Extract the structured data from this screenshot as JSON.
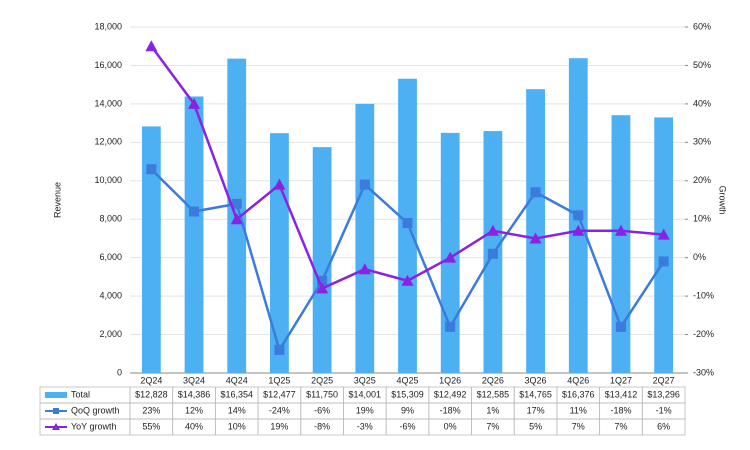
{
  "chart_data": {
    "type": "combo",
    "y_label": "Revenue",
    "y2_label": "Growth",
    "categories": [
      "2Q24",
      "3Q24",
      "4Q24",
      "1Q25",
      "2Q25",
      "3Q25",
      "4Q25",
      "1Q26",
      "2Q26",
      "3Q26",
      "4Q26",
      "1Q27",
      "2Q27"
    ],
    "series": [
      {
        "name": "Total",
        "type": "bar",
        "color": "#4cb0f2",
        "values": [
          12828,
          14386,
          16354,
          12477,
          11750,
          14001,
          15309,
          12492,
          12585,
          14765,
          16376,
          13412,
          13296
        ],
        "value_labels": [
          "$12,828",
          "$14,386",
          "$16,354",
          "$12,477",
          "$11,750",
          "$14,001",
          "$15,309",
          "$12,492",
          "$12,585",
          "$14,765",
          "$16,376",
          "$13,412",
          "$13,296"
        ]
      },
      {
        "name": "QoQ growth",
        "type": "line",
        "marker": "square",
        "axis": "y2",
        "color": "#3b7bdc",
        "values": [
          23,
          12,
          14,
          -24,
          -6,
          19,
          9,
          -18,
          1,
          17,
          11,
          -18,
          -1
        ],
        "value_labels": [
          "23%",
          "12%",
          "14%",
          "-24%",
          "-6%",
          "19%",
          "9%",
          "-18%",
          "1%",
          "17%",
          "11%",
          "-18%",
          "-1%"
        ]
      },
      {
        "name": "YoY growth",
        "type": "line",
        "marker": "triangle",
        "axis": "y2",
        "color": "#8b22e3",
        "values": [
          55,
          40,
          10,
          19,
          -8,
          -3,
          -6,
          0,
          7,
          5,
          7,
          7,
          6
        ],
        "value_labels": [
          "55%",
          "40%",
          "10%",
          "19%",
          "-8%",
          "-3%",
          "-6%",
          "0%",
          "7%",
          "5%",
          "7%",
          "7%",
          "6%"
        ]
      }
    ],
    "ylim": [
      0,
      18000
    ],
    "yticks": [
      0,
      {
        "value": 2000,
        "label": "2,000"
      },
      {
        "value": 4000,
        "label": "4,000"
      },
      {
        "value": 6000,
        "label": "6,000"
      },
      {
        "value": 8000,
        "label": "8,000"
      },
      {
        "value": 10000,
        "label": "10,000"
      },
      {
        "value": 12000,
        "label": "12,000"
      },
      {
        "value": 14000,
        "label": "14,000"
      },
      {
        "value": 16000,
        "label": "16,000"
      },
      {
        "value": 18000,
        "label": "18,000"
      }
    ],
    "y2lim": [
      -30,
      60
    ],
    "y2ticks": [
      {
        "value": -30,
        "label": "-30%"
      },
      {
        "value": -20,
        "label": "-20%"
      },
      {
        "value": -10,
        "label": "-10%"
      },
      {
        "value": 0,
        "label": "0%"
      },
      {
        "value": 10,
        "label": "10%"
      },
      {
        "value": 20,
        "label": "20%"
      },
      {
        "value": 30,
        "label": "30%"
      },
      {
        "value": 40,
        "label": "40%"
      },
      {
        "value": 50,
        "label": "50%"
      },
      {
        "value": 60,
        "label": "60%"
      }
    ],
    "grid": true
  }
}
